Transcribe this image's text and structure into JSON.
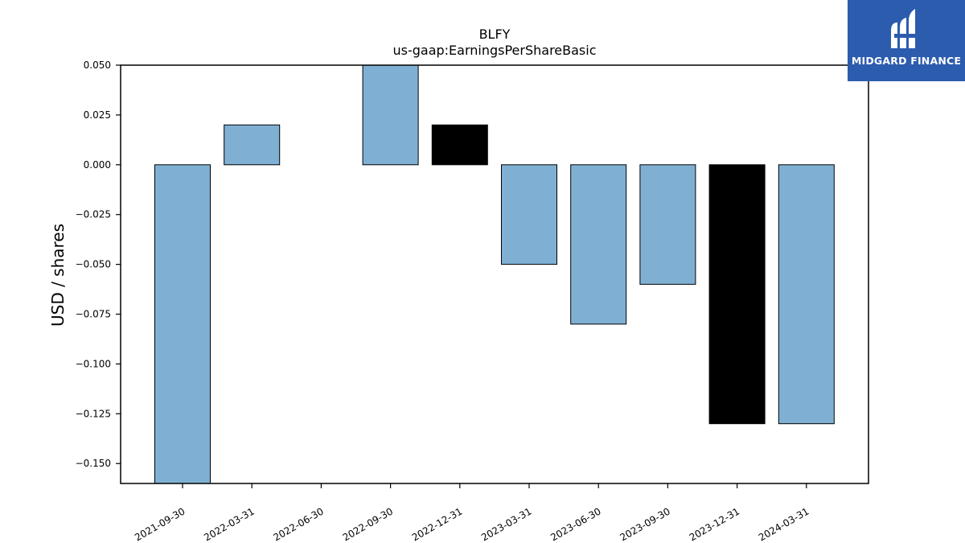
{
  "chart_data": {
    "type": "bar",
    "title": "BLFY",
    "subtitle": "us-gaap:EarningsPerShareBasic",
    "xlabel": "",
    "ylabel": "USD / shares",
    "ylim": [
      -0.16,
      0.05
    ],
    "yticks": [
      "0.050",
      "0.025",
      "0.000",
      "−0.025",
      "−0.050",
      "−0.075",
      "−0.100",
      "−0.125",
      "−0.150"
    ],
    "ytick_values": [
      0.05,
      0.025,
      0.0,
      -0.025,
      -0.05,
      -0.075,
      -0.1,
      -0.125,
      -0.15
    ],
    "categories": [
      "2021-09-30",
      "2022-03-31",
      "2022-06-30",
      "2022-09-30",
      "2022-12-31",
      "2023-03-31",
      "2023-06-30",
      "2023-09-30",
      "2023-12-31",
      "2024-03-31"
    ],
    "values": [
      -0.16,
      0.02,
      0.0,
      0.05,
      0.02,
      -0.05,
      -0.08,
      -0.06,
      -0.13,
      -0.13
    ],
    "bar_colors": [
      "#7fb0d4",
      "#7fb0d4",
      "#7fb0d4",
      "#7fb0d4",
      "#000000",
      "#7fb0d4",
      "#7fb0d4",
      "#7fb0d4",
      "#000000",
      "#7fb0d4"
    ],
    "grid": false,
    "legend": "none"
  },
  "logo": {
    "text": "MIDGARD FINANCE",
    "background": "#2c5cae",
    "icon": "midgard-logo-icon"
  }
}
